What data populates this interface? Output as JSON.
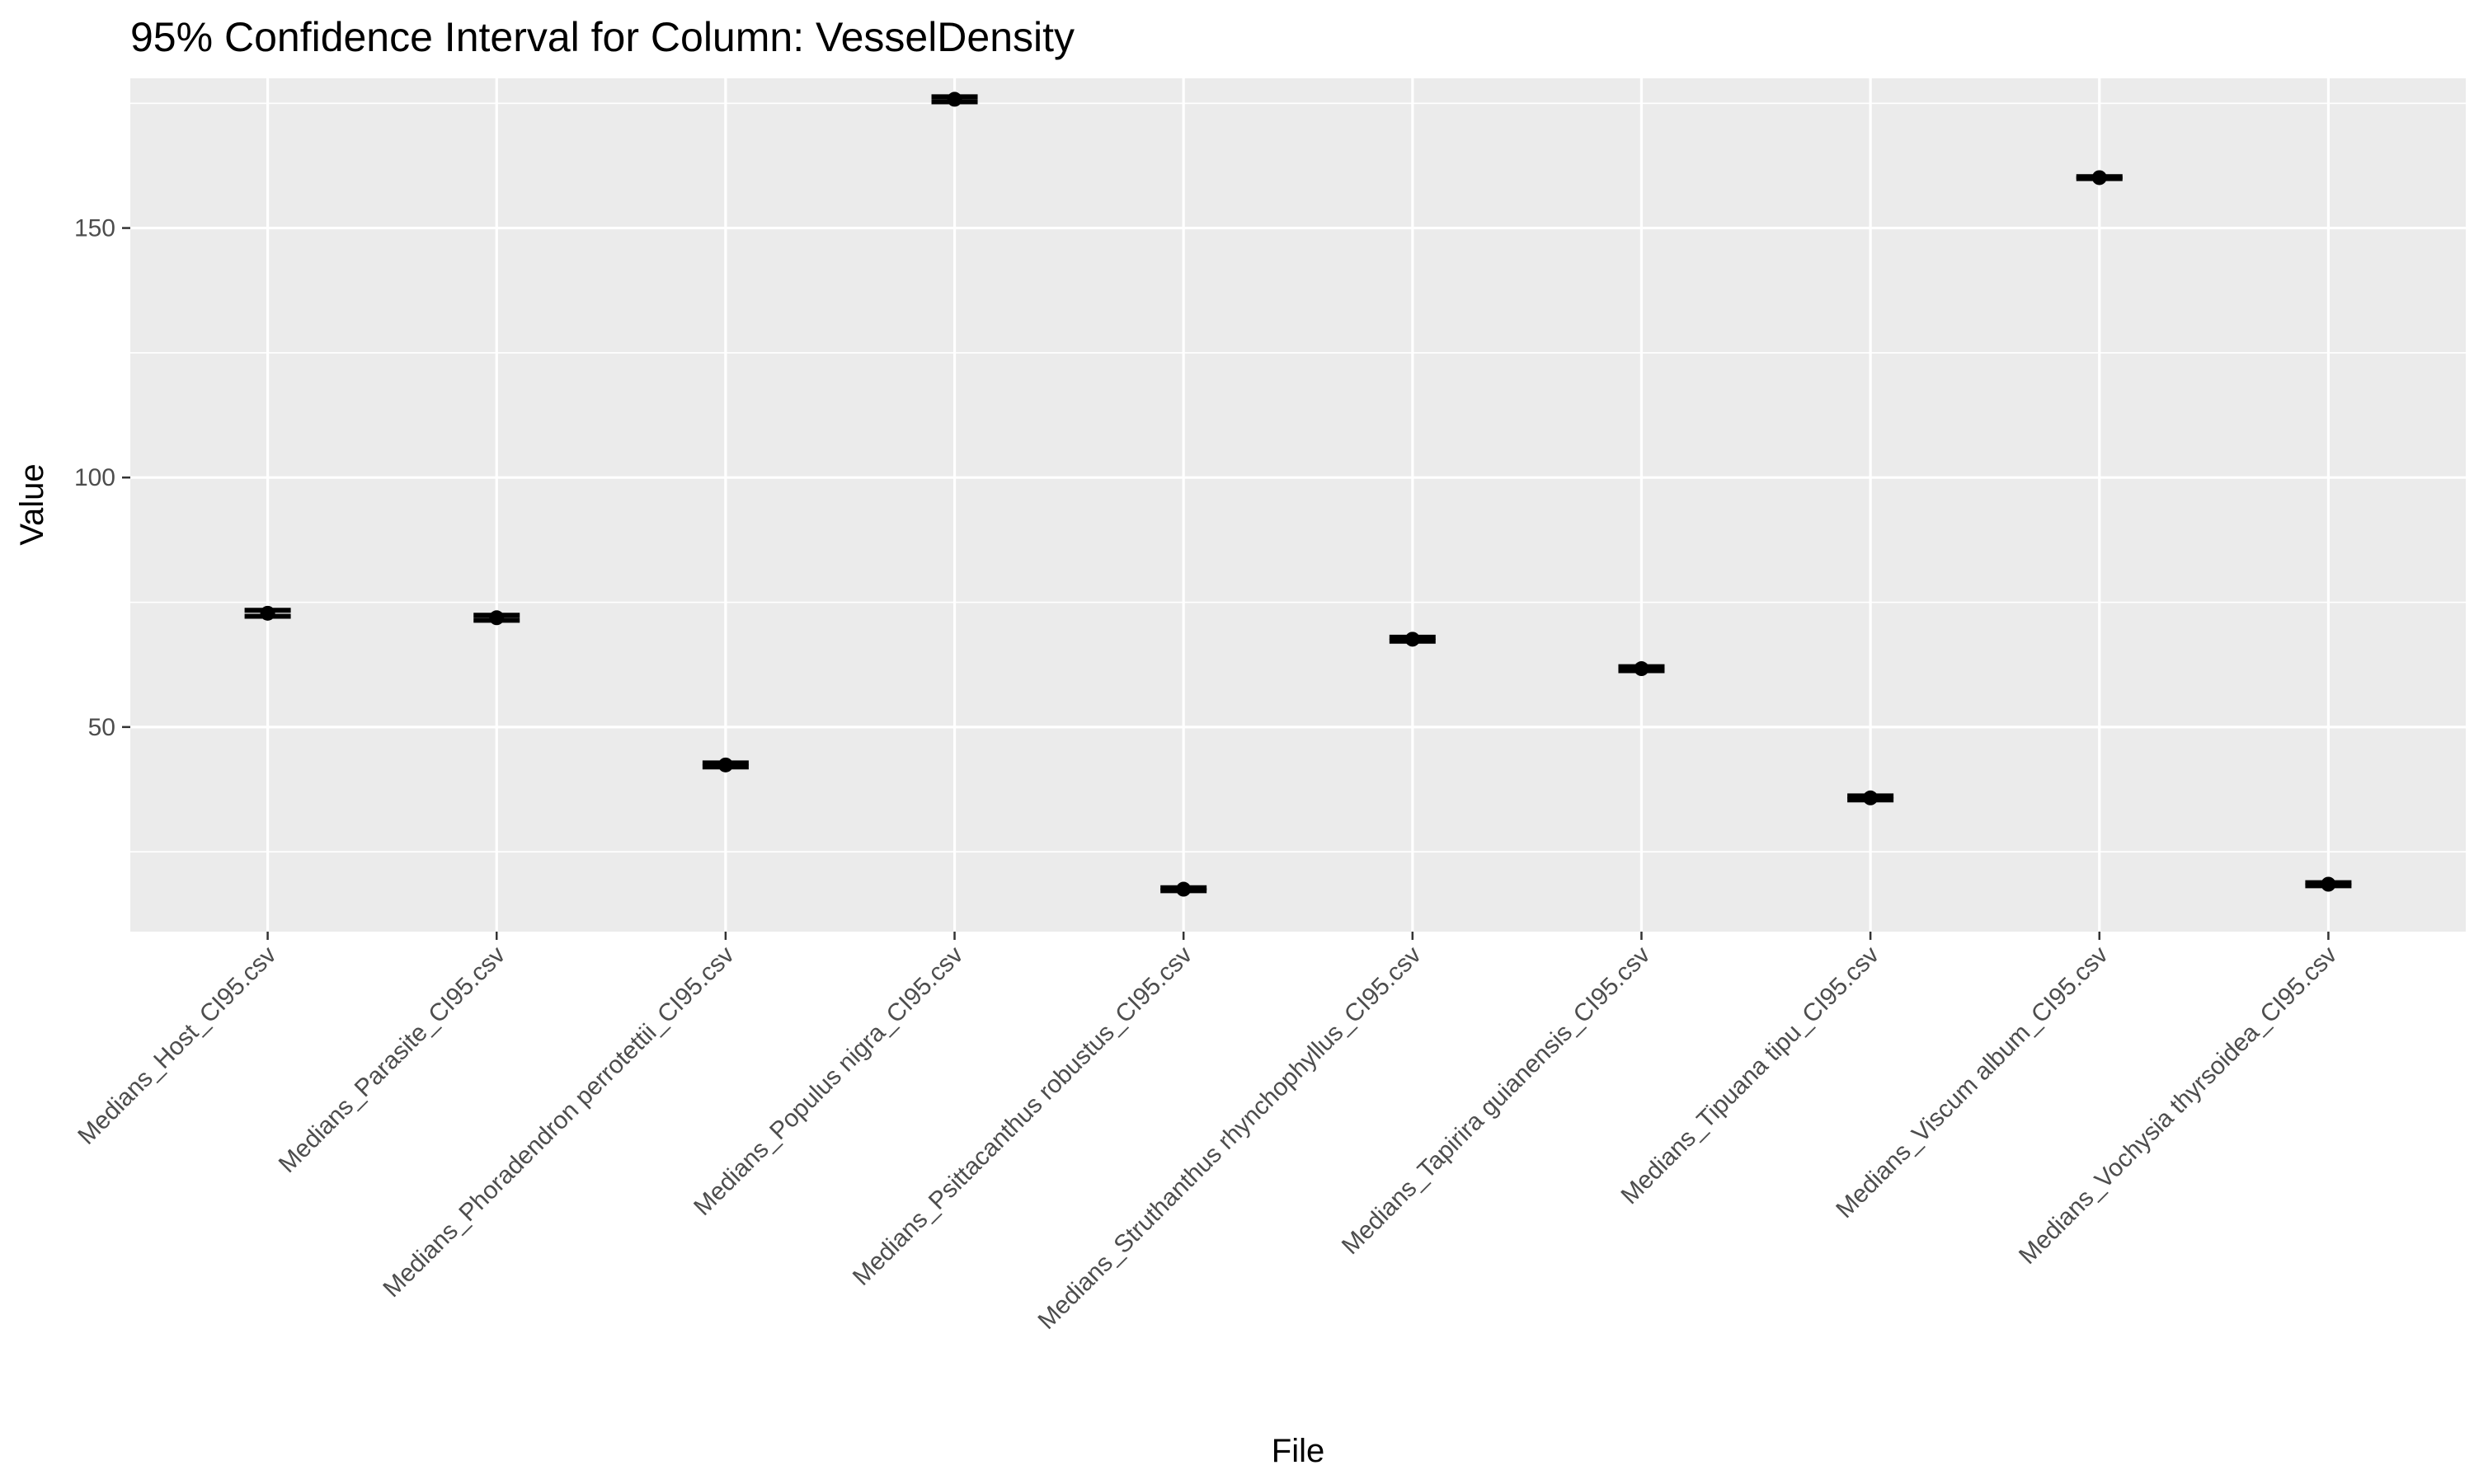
{
  "chart_data": {
    "type": "scatter",
    "title": "95% Confidence Interval for Column: VesselDensity",
    "xlabel": "File",
    "ylabel": "Value",
    "ylim": [
      9,
      180
    ],
    "y_major_ticks": [
      50,
      100,
      150
    ],
    "y_minor_ticks": [
      25,
      75,
      125,
      175
    ],
    "grid": true,
    "background": "#ebebeb",
    "point_color": "#000000",
    "categories": [
      "Medians_Host_CI95.csv",
      "Medians_Parasite_CI95.csv",
      "Medians_Phoradendron perrotettii_CI95.csv",
      "Medians_Populus nigra_CI95.csv",
      "Medians_Psittacanthus robustus_CI95.csv",
      "Medians_Struthanthus rhynchophyllus_CI95.csv",
      "Medians_Tapirira guianensis_CI95.csv",
      "Medians_Tipuana tipu_CI95.csv",
      "Medians_Viscum album_CI95.csv",
      "Medians_Vochysia thyrsoidea_CI95.csv"
    ],
    "values": [
      72.8,
      71.9,
      42.4,
      175.8,
      17.5,
      67.6,
      61.7,
      35.8,
      160.1,
      18.5
    ],
    "ci_lower": [
      72.2,
      71.4,
      42.0,
      175.3,
      17.2,
      67.2,
      61.3,
      35.4,
      159.9,
      18.2
    ],
    "ci_upper": [
      73.4,
      72.4,
      42.8,
      176.3,
      17.8,
      68.0,
      62.1,
      36.2,
      160.3,
      18.8
    ]
  }
}
